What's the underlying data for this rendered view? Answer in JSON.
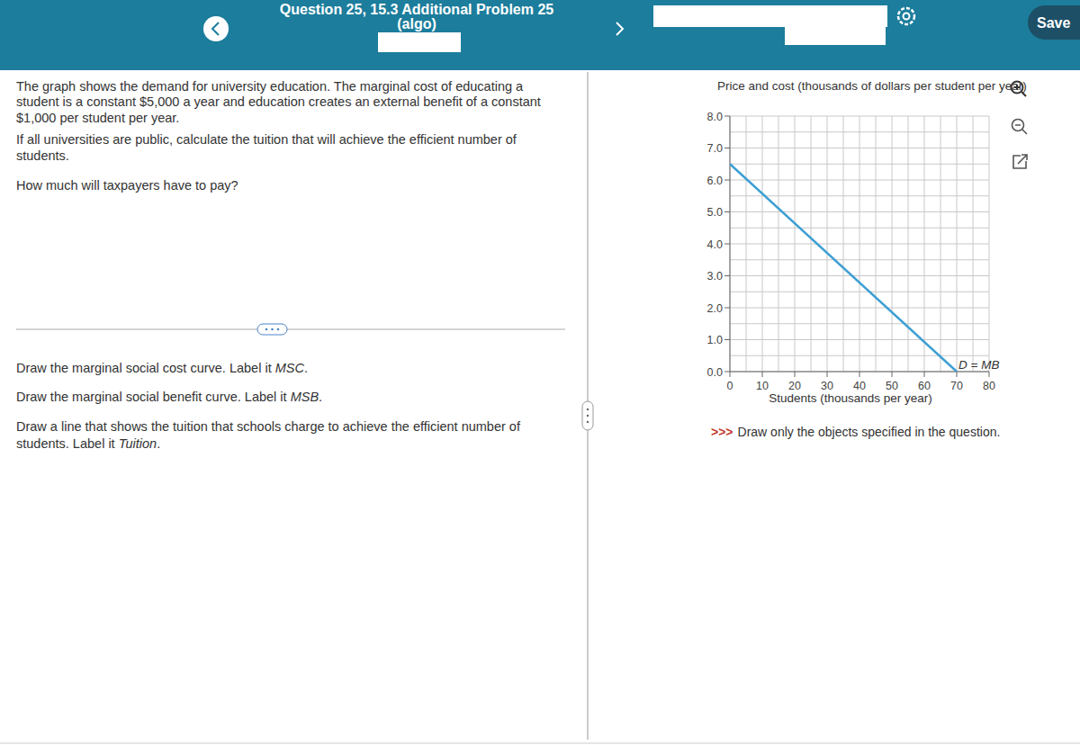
{
  "header": {
    "title": "Question 25, 15.3 Additional Problem 25",
    "subtitle": "(algo)",
    "save": "Save"
  },
  "question": {
    "lines": [
      "The graph shows the demand for university education. The marginal cost of educating a",
      "student is a constant $5,000 a year and education creates an external benefit of a constant",
      "$1,000 per student per year.",
      "If all universities are public, calculate the tuition that will achieve the efficient number of",
      "students.",
      "How much will taxpayers have to pay?"
    ]
  },
  "tasks": [
    {
      "lines": [
        "Draw the marginal social cost curve. Label it "
      ],
      "label": "MSC",
      "end": "."
    },
    {
      "lines": [
        "Draw the marginal social benefit curve. Label it "
      ],
      "label": "MSB",
      "end": "."
    },
    {
      "lines": [
        "Draw a line that shows the tuition that schools charge to achieve the efficient number of",
        "students. Label it "
      ],
      "label": "Tuition",
      "end": "."
    }
  ],
  "note": {
    "prefix": ">>>",
    "text": "Draw only the objects specified in the question."
  },
  "chart_data": {
    "type": "line",
    "y_label": "Price and cost (thousands of dollars per student per year)",
    "x_label": "Students (thousands per year)",
    "x": [
      0,
      70
    ],
    "series": [
      {
        "name": "D = MB",
        "color": "#3d9fd3",
        "values": [
          6.5,
          0
        ]
      }
    ],
    "xlim": [
      0,
      80
    ],
    "ylim": [
      0,
      8
    ],
    "xticks": [
      0,
      10,
      20,
      30,
      40,
      50,
      60,
      70,
      80
    ],
    "yticks": [
      {
        "value": 0,
        "label": "0.0"
      },
      {
        "value": 1,
        "label": "1.0"
      },
      {
        "value": 2,
        "label": "2.0"
      },
      {
        "value": 3,
        "label": "3.0"
      },
      {
        "value": 4,
        "label": "4.0"
      },
      {
        "value": 5,
        "label": "5.0"
      },
      {
        "value": 6,
        "label": "6.0"
      },
      {
        "value": 7,
        "label": "7.0"
      },
      {
        "value": 8,
        "label": "8.0"
      }
    ],
    "grid": true
  }
}
